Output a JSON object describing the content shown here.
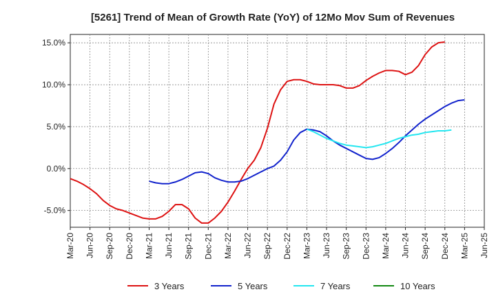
{
  "chart_data": {
    "type": "line",
    "title": "[5261]  Trend of Mean of Growth Rate (YoY) of 12Mo Mov Sum of Revenues",
    "xlabel": "",
    "ylabel": "",
    "ylim": [
      -7.0,
      16.0
    ],
    "y_ticks": [
      15.0,
      10.0,
      5.0,
      0.0,
      -5.0
    ],
    "y_tick_labels": [
      "15.0%",
      "10.0%",
      "5.0%",
      "0.0%",
      "-5.0%"
    ],
    "x_tick_labels": [
      "Mar-20",
      "Jun-20",
      "Sep-20",
      "Dec-20",
      "Mar-21",
      "Jun-21",
      "Sep-21",
      "Dec-21",
      "Mar-22",
      "Jun-22",
      "Sep-22",
      "Dec-22",
      "Mar-23",
      "Jun-23",
      "Sep-23",
      "Dec-23",
      "Mar-24",
      "Jun-24",
      "Sep-24",
      "Dec-24",
      "Mar-25",
      "Jun-25"
    ],
    "grid": true,
    "legend_position": "bottom",
    "series": [
      {
        "name": "3 Years",
        "color": "#dd1111",
        "start_index": 0,
        "values": [
          -1.2,
          -1.5,
          -1.9,
          -2.4,
          -3.0,
          -3.8,
          -4.4,
          -4.8,
          -5.0,
          -5.3,
          -5.6,
          -5.9,
          -6.0,
          -6.0,
          -5.7,
          -5.1,
          -4.3,
          -4.3,
          -4.8,
          -5.9,
          -6.5,
          -6.5,
          -5.9,
          -5.1,
          -4.0,
          -2.7,
          -1.3,
          0.0,
          1.0,
          2.5,
          4.8,
          7.7,
          9.4,
          10.4,
          10.6,
          10.6,
          10.4,
          10.1,
          10.0,
          10.0,
          10.0,
          9.9,
          9.6,
          9.6,
          9.9,
          10.5,
          11.0,
          11.4,
          11.7,
          11.7,
          11.6,
          11.2,
          11.5,
          12.3,
          13.6,
          14.5,
          15.0,
          15.1
        ]
      },
      {
        "name": "5 Years",
        "color": "#1122cc",
        "start_index": 12,
        "values": [
          -1.5,
          -1.7,
          -1.8,
          -1.8,
          -1.6,
          -1.3,
          -0.9,
          -0.5,
          -0.4,
          -0.6,
          -1.1,
          -1.4,
          -1.6,
          -1.6,
          -1.5,
          -1.2,
          -0.8,
          -0.4,
          0.0,
          0.3,
          1.0,
          2.0,
          3.4,
          4.3,
          4.7,
          4.6,
          4.4,
          3.9,
          3.3,
          2.8,
          2.4,
          2.0,
          1.6,
          1.2,
          1.1,
          1.3,
          1.8,
          2.4,
          3.1,
          3.9,
          4.6,
          5.3,
          5.9,
          6.4,
          6.9,
          7.4,
          7.8,
          8.1,
          8.2
        ]
      },
      {
        "name": "7 Years",
        "color": "#22e6f0",
        "start_index": 36,
        "values": [
          4.7,
          4.4,
          4.0,
          3.6,
          3.3,
          3.0,
          2.8,
          2.7,
          2.6,
          2.5,
          2.6,
          2.8,
          3.0,
          3.3,
          3.6,
          3.8,
          4.0,
          4.1,
          4.3,
          4.4,
          4.5,
          4.5,
          4.6
        ]
      },
      {
        "name": "10 Years",
        "color": "#118811",
        "start_index": 0,
        "values": []
      }
    ]
  }
}
